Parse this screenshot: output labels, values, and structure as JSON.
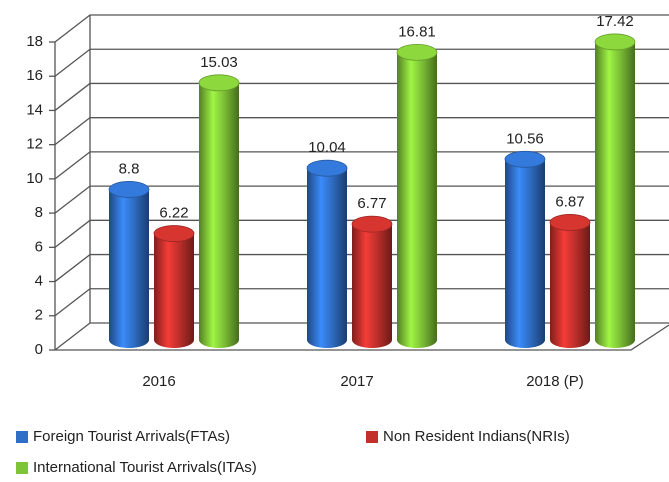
{
  "chart_data": {
    "type": "bar",
    "categories": [
      "2016",
      "2017",
      "2018 (P)"
    ],
    "series": [
      {
        "name": "Foreign Tourist Arrivals(FTAs)",
        "color": "#2f6fc8",
        "values": [
          8.8,
          10.04,
          10.56
        ]
      },
      {
        "name": "Non Resident Indians(NRIs)",
        "color": "#c3302c",
        "values": [
          6.22,
          6.77,
          6.87
        ]
      },
      {
        "name": "International Tourist Arrivals(ITAs)",
        "color": "#7fc437",
        "values": [
          15.03,
          16.81,
          17.42
        ]
      }
    ],
    "ylim": [
      0,
      18
    ],
    "yticks": [
      0,
      2,
      4,
      6,
      8,
      10,
      12,
      14,
      16,
      18
    ],
    "grid": true,
    "legend": "bottom"
  }
}
